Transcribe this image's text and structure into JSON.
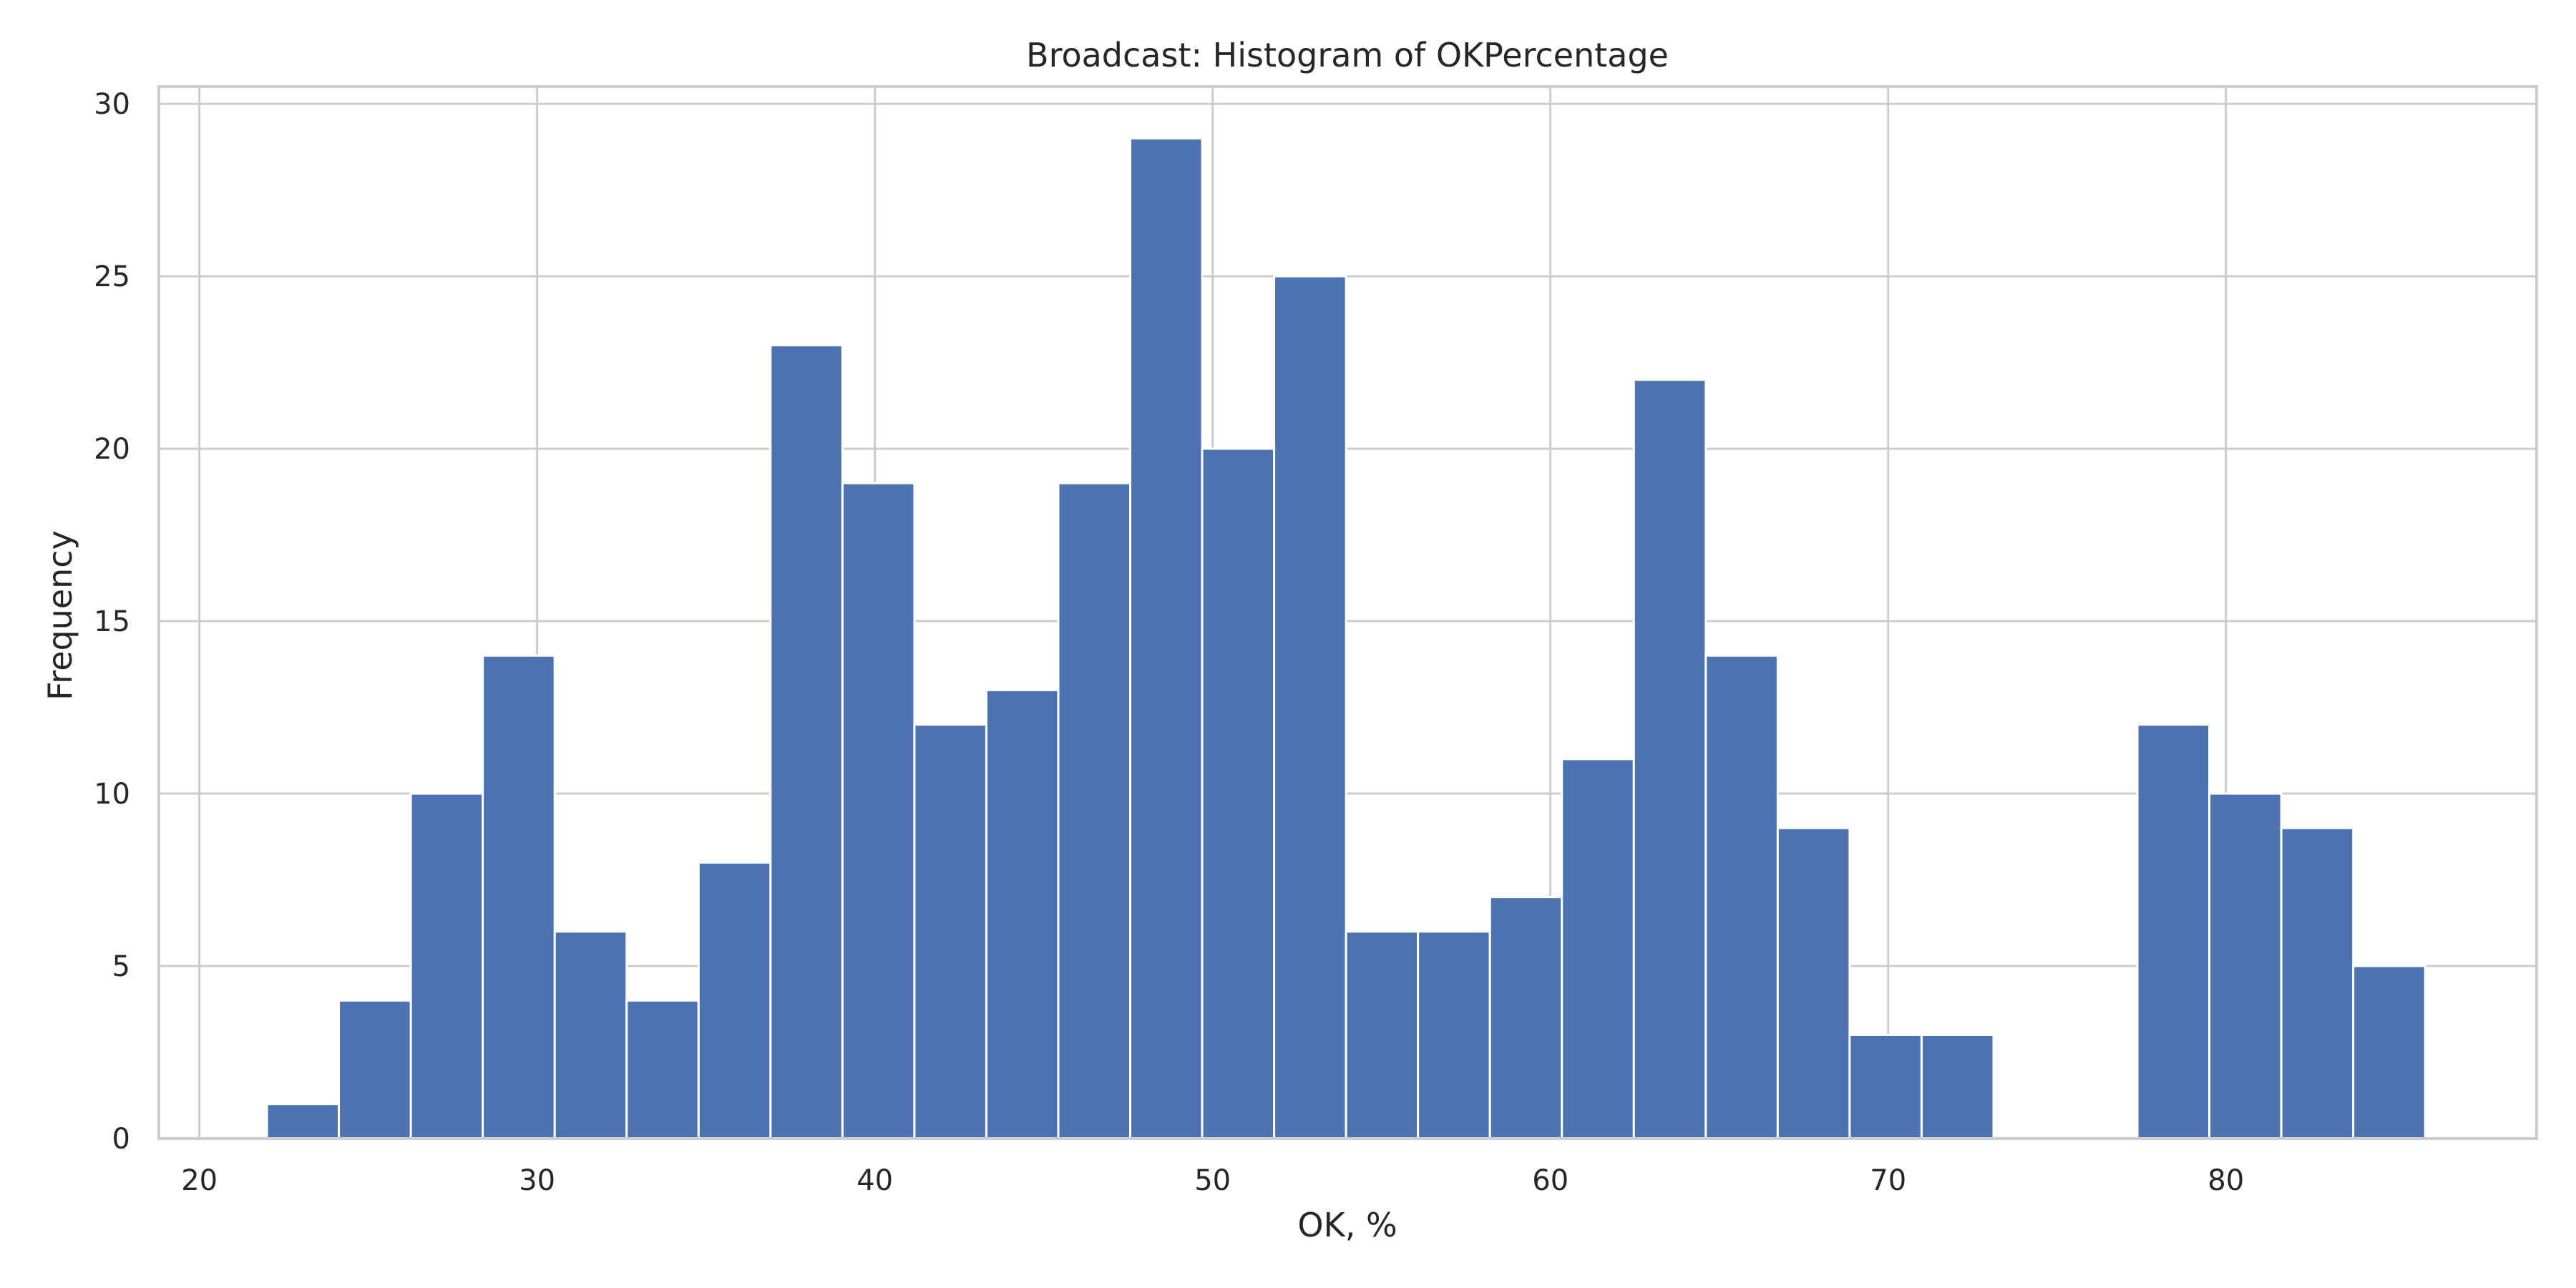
{
  "chart_data": {
    "type": "bar",
    "title": "Broadcast: Histogram of OKPercentage",
    "xlabel": "OK, %",
    "ylabel": "Frequency",
    "xlim": [
      18.8,
      89.2
    ],
    "ylim": [
      0,
      30.5
    ],
    "xticks": [
      20,
      30,
      40,
      50,
      60,
      70,
      80
    ],
    "yticks": [
      0,
      5,
      10,
      15,
      20,
      25,
      30
    ],
    "grid": true,
    "bar_color": "#4c72b0",
    "bins": [
      {
        "x0": 22.0,
        "x1": 24.13,
        "count": 1
      },
      {
        "x0": 24.13,
        "x1": 26.26,
        "count": 4
      },
      {
        "x0": 26.26,
        "x1": 28.39,
        "count": 10
      },
      {
        "x0": 28.39,
        "x1": 30.52,
        "count": 14
      },
      {
        "x0": 30.52,
        "x1": 32.65,
        "count": 6
      },
      {
        "x0": 32.65,
        "x1": 34.78,
        "count": 4
      },
      {
        "x0": 34.78,
        "x1": 36.91,
        "count": 8
      },
      {
        "x0": 36.91,
        "x1": 39.04,
        "count": 23
      },
      {
        "x0": 39.04,
        "x1": 41.17,
        "count": 19
      },
      {
        "x0": 41.17,
        "x1": 43.3,
        "count": 12
      },
      {
        "x0": 43.3,
        "x1": 45.43,
        "count": 13
      },
      {
        "x0": 45.43,
        "x1": 47.56,
        "count": 19
      },
      {
        "x0": 47.56,
        "x1": 49.69,
        "count": 29
      },
      {
        "x0": 49.69,
        "x1": 51.82,
        "count": 20
      },
      {
        "x0": 51.82,
        "x1": 53.95,
        "count": 25
      },
      {
        "x0": 53.95,
        "x1": 56.08,
        "count": 6
      },
      {
        "x0": 56.08,
        "x1": 58.21,
        "count": 6
      },
      {
        "x0": 58.21,
        "x1": 60.34,
        "count": 7
      },
      {
        "x0": 60.34,
        "x1": 62.47,
        "count": 11
      },
      {
        "x0": 62.47,
        "x1": 64.6,
        "count": 22
      },
      {
        "x0": 64.6,
        "x1": 66.73,
        "count": 14
      },
      {
        "x0": 66.73,
        "x1": 68.86,
        "count": 9
      },
      {
        "x0": 68.86,
        "x1": 70.99,
        "count": 3
      },
      {
        "x0": 70.99,
        "x1": 73.12,
        "count": 3
      },
      {
        "x0": 73.12,
        "x1": 75.25,
        "count": 0
      },
      {
        "x0": 75.25,
        "x1": 77.38,
        "count": 0
      },
      {
        "x0": 77.38,
        "x1": 79.51,
        "count": 12
      },
      {
        "x0": 79.51,
        "x1": 81.64,
        "count": 10
      },
      {
        "x0": 81.64,
        "x1": 83.77,
        "count": 9
      },
      {
        "x0": 83.77,
        "x1": 85.9,
        "count": 5
      }
    ]
  }
}
